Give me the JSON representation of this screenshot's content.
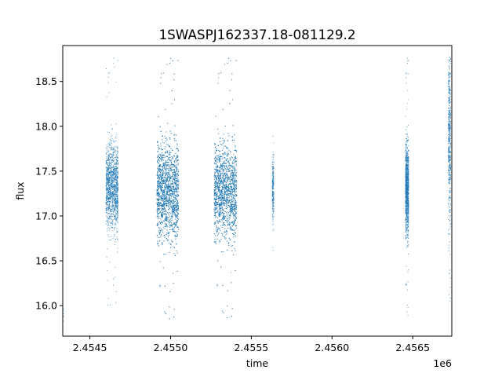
{
  "chart_data": {
    "type": "scatter",
    "title": "1SWASPJ162337.18-081129.2",
    "xlabel": "time",
    "ylabel": "flux",
    "x_offset_label": "1e6",
    "xlim": [
      2454332,
      2456742
    ],
    "ylim": [
      15.66,
      18.9
    ],
    "grid": false,
    "legend": "none",
    "marker_color": "#1f77b4",
    "x_ticks": [
      {
        "value": 2454500,
        "label": "2.4545"
      },
      {
        "value": 2455000,
        "label": "2.4550"
      },
      {
        "value": 2455500,
        "label": "2.4555"
      },
      {
        "value": 2456000,
        "label": "2.4560"
      },
      {
        "value": 2456500,
        "label": "2.4565"
      }
    ],
    "y_ticks": [
      {
        "value": 16.0,
        "label": "16.0"
      },
      {
        "value": 16.5,
        "label": "16.5"
      },
      {
        "value": 17.0,
        "label": "17.0"
      },
      {
        "value": 17.5,
        "label": "17.5"
      },
      {
        "value": 18.0,
        "label": "18.0"
      },
      {
        "value": 18.5,
        "label": "18.5"
      }
    ],
    "clusters": [
      {
        "x_range": [
          2454335,
          2454336
        ],
        "y_center": 15.9,
        "y_spread": 0.08,
        "y_min": 15.82,
        "y_max": 16.0,
        "density": 6
      },
      {
        "x_range": [
          2454600,
          2454675
        ],
        "y_center": 17.33,
        "y_spread": 0.22,
        "y_min": 15.9,
        "y_max": 18.78,
        "density": 1400
      },
      {
        "x_range": [
          2454915,
          2455050
        ],
        "y_center": 17.28,
        "y_spread": 0.26,
        "y_min": 15.82,
        "y_max": 18.78,
        "density": 3200
      },
      {
        "x_range": [
          2455270,
          2455410
        ],
        "y_center": 17.28,
        "y_spread": 0.25,
        "y_min": 15.83,
        "y_max": 18.78,
        "density": 2800
      },
      {
        "x_range": [
          2455630,
          2455640
        ],
        "y_center": 17.33,
        "y_spread": 0.18,
        "y_min": 16.6,
        "y_max": 17.93,
        "density": 220
      },
      {
        "x_range": [
          2456455,
          2456475
        ],
        "y_center": 17.3,
        "y_spread": 0.24,
        "y_min": 15.84,
        "y_max": 18.78,
        "density": 1100
      },
      {
        "x_range": [
          2456720,
          2456735
        ],
        "y_center": 17.9,
        "y_spread": 0.45,
        "y_min": 16.02,
        "y_max": 18.78,
        "density": 500
      }
    ]
  }
}
